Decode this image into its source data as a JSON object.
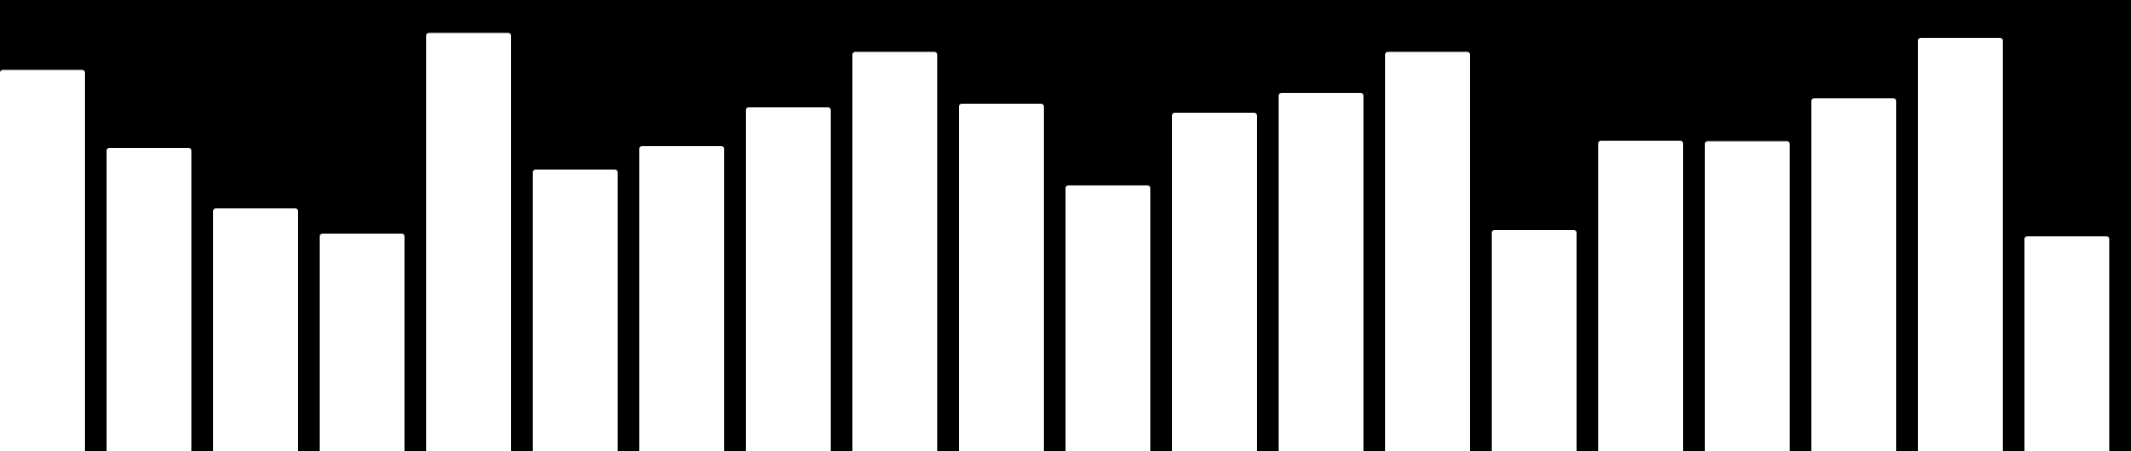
{
  "chart_data": {
    "type": "bar",
    "title": "",
    "xlabel": "",
    "ylabel": "",
    "ylim": [
      0,
      100
    ],
    "grid": false,
    "legend": "none",
    "values": [
      84.5,
      67.2,
      53.8,
      48.2,
      92.7,
      62.4,
      67.6,
      76.2,
      88.5,
      77.0,
      58.9,
      75.0,
      79.4,
      88.5,
      49.0,
      68.8,
      68.7,
      78.2,
      91.6,
      47.6
    ]
  },
  "colors": {
    "background": "#000000",
    "bar": "#ffffff"
  }
}
